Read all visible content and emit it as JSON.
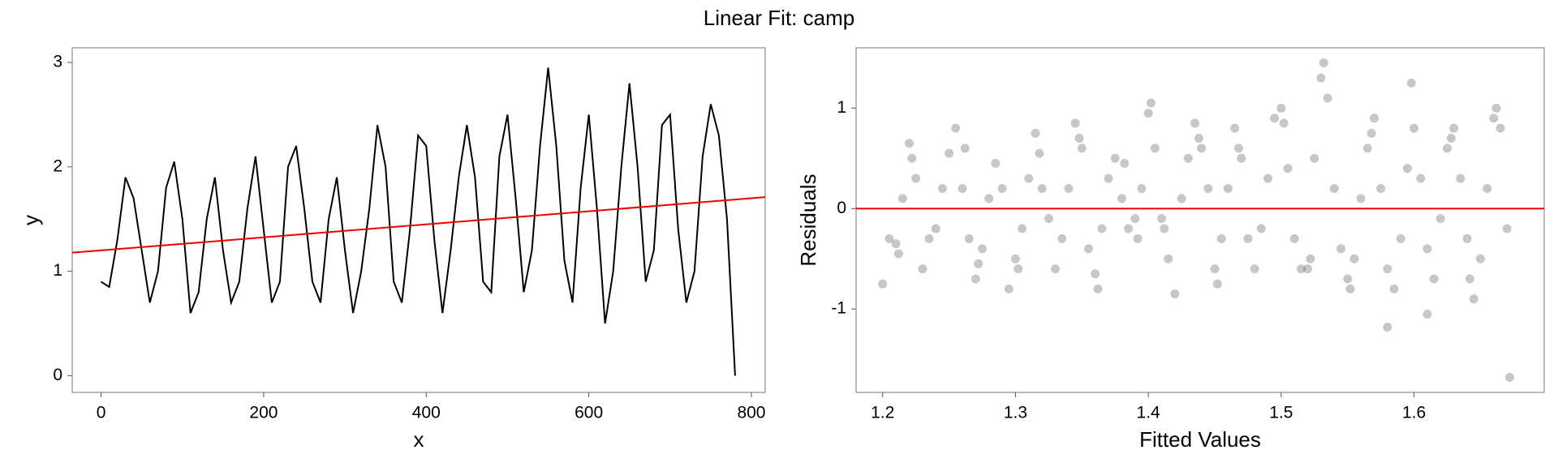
{
  "title": "Linear Fit: camp",
  "chart_data": [
    {
      "type": "line",
      "xlabel": "x",
      "ylabel": "y",
      "color": "#000000",
      "x": [
        0,
        10,
        20,
        30,
        40,
        50,
        60,
        70,
        80,
        90,
        100,
        110,
        120,
        130,
        140,
        150,
        160,
        170,
        180,
        190,
        200,
        210,
        220,
        230,
        240,
        250,
        260,
        270,
        280,
        290,
        300,
        310,
        320,
        330,
        340,
        350,
        360,
        370,
        380,
        390,
        400,
        410,
        420,
        430,
        440,
        450,
        460,
        470,
        480,
        490,
        500,
        510,
        520,
        530,
        540,
        550,
        560,
        570,
        580,
        590,
        600,
        610,
        620,
        630,
        640,
        650,
        660,
        670,
        680,
        690,
        700,
        710,
        720,
        730,
        740,
        750,
        760,
        770,
        780
      ],
      "values": [
        0.9,
        0.85,
        1.3,
        1.9,
        1.7,
        1.2,
        0.7,
        1.0,
        1.8,
        2.05,
        1.5,
        0.6,
        0.8,
        1.5,
        1.9,
        1.2,
        0.7,
        0.9,
        1.6,
        2.1,
        1.4,
        0.7,
        0.9,
        2.0,
        2.2,
        1.6,
        0.9,
        0.7,
        1.5,
        1.9,
        1.2,
        0.6,
        1.0,
        1.6,
        2.4,
        2.0,
        0.9,
        0.7,
        1.4,
        2.3,
        2.2,
        1.3,
        0.6,
        1.2,
        1.9,
        2.4,
        1.9,
        0.9,
        0.8,
        2.1,
        2.5,
        1.7,
        0.8,
        1.2,
        2.2,
        2.95,
        2.2,
        1.1,
        0.7,
        1.8,
        2.5,
        1.6,
        0.5,
        1.0,
        2.0,
        2.8,
        2.0,
        0.9,
        1.2,
        2.4,
        2.5,
        1.4,
        0.7,
        1.0,
        2.1,
        2.6,
        2.3,
        1.5,
        0.0
      ],
      "fit_line": {
        "x": [
          -35.5,
          817
        ],
        "values": [
          1.178,
          1.71
        ],
        "color": "#ee0000"
      },
      "xlim": [
        -35.5,
        817
      ],
      "ylim": [
        -0.16,
        3.14
      ],
      "xticks": [
        0,
        200,
        400,
        600,
        800
      ],
      "yticks": [
        0,
        1,
        2,
        3
      ]
    },
    {
      "type": "scatter",
      "xlabel": "Fitted Values",
      "ylabel": "Residuals",
      "color": "#444444",
      "alpha": 0.3,
      "x": [
        1.205,
        1.21,
        1.215,
        1.22,
        1.225,
        1.23,
        1.235,
        1.24,
        1.245,
        1.25,
        1.255,
        1.26,
        1.265,
        1.27,
        1.275,
        1.28,
        1.285,
        1.29,
        1.295,
        1.3,
        1.305,
        1.31,
        1.315,
        1.32,
        1.325,
        1.33,
        1.335,
        1.34,
        1.345,
        1.35,
        1.355,
        1.36,
        1.365,
        1.37,
        1.375,
        1.38,
        1.385,
        1.39,
        1.395,
        1.4,
        1.405,
        1.41,
        1.415,
        1.42,
        1.425,
        1.43,
        1.435,
        1.44,
        1.445,
        1.45,
        1.455,
        1.46,
        1.465,
        1.47,
        1.475,
        1.48,
        1.485,
        1.49,
        1.495,
        1.5,
        1.505,
        1.51,
        1.515,
        1.52,
        1.525,
        1.53,
        1.535,
        1.54,
        1.545,
        1.55,
        1.555,
        1.56,
        1.565,
        1.57,
        1.575,
        1.58,
        1.585,
        1.59,
        1.595,
        1.6,
        1.605,
        1.61,
        1.615,
        1.62,
        1.625,
        1.63,
        1.635,
        1.64,
        1.645,
        1.65,
        1.655,
        1.66,
        1.665,
        1.67,
        1.2,
        1.672,
        1.58,
        1.61,
        1.212,
        1.262,
        1.318,
        1.348,
        1.382,
        1.402,
        1.438,
        1.468,
        1.502,
        1.532,
        1.568,
        1.598,
        1.628,
        1.662,
        1.222,
        1.272,
        1.362,
        1.452,
        1.552,
        1.642,
        1.522,
        1.412,
        1.302,
        1.392
      ],
      "values": [
        -0.3,
        -0.35,
        0.1,
        0.65,
        0.3,
        -0.6,
        -0.3,
        -0.2,
        0.2,
        0.55,
        0.8,
        0.2,
        -0.3,
        -0.7,
        -0.4,
        0.1,
        0.45,
        0.2,
        -0.8,
        -0.5,
        -0.2,
        0.3,
        0.75,
        0.2,
        -0.1,
        -0.6,
        -0.3,
        0.2,
        0.85,
        0.6,
        -0.4,
        -0.65,
        -0.2,
        0.3,
        0.5,
        0.1,
        -0.2,
        -0.1,
        0.2,
        0.95,
        0.6,
        -0.1,
        -0.5,
        -0.85,
        0.1,
        0.5,
        0.85,
        0.6,
        0.2,
        -0.6,
        -0.3,
        0.2,
        0.8,
        0.5,
        -0.3,
        -0.6,
        -0.2,
        0.3,
        0.9,
        1.0,
        0.4,
        -0.3,
        -0.6,
        -0.6,
        0.5,
        1.3,
        1.1,
        0.2,
        -0.4,
        -0.7,
        -0.5,
        0.1,
        0.6,
        0.9,
        0.2,
        -0.6,
        -0.8,
        -0.3,
        0.4,
        0.8,
        0.3,
        -0.4,
        -0.7,
        -0.1,
        0.6,
        0.8,
        0.3,
        -0.3,
        -0.9,
        -0.5,
        0.2,
        0.9,
        0.8,
        -0.2,
        -0.75,
        -1.68,
        -1.18,
        -1.05,
        -0.45,
        0.6,
        0.55,
        0.7,
        0.45,
        1.05,
        0.7,
        0.6,
        0.85,
        1.45,
        0.75,
        1.25,
        0.7,
        1.0,
        0.5,
        -0.55,
        -0.8,
        -0.75,
        -0.8,
        -0.7,
        -0.5,
        -0.2,
        -0.6,
        -0.3
      ],
      "hline": 0,
      "hline_color": "#ee0000",
      "xlim": [
        1.18,
        1.698
      ],
      "ylim": [
        -1.83,
        1.6
      ],
      "xticks": [
        1.2,
        1.3,
        1.4,
        1.5,
        1.6
      ],
      "yticks": [
        -1,
        0,
        1
      ]
    }
  ]
}
